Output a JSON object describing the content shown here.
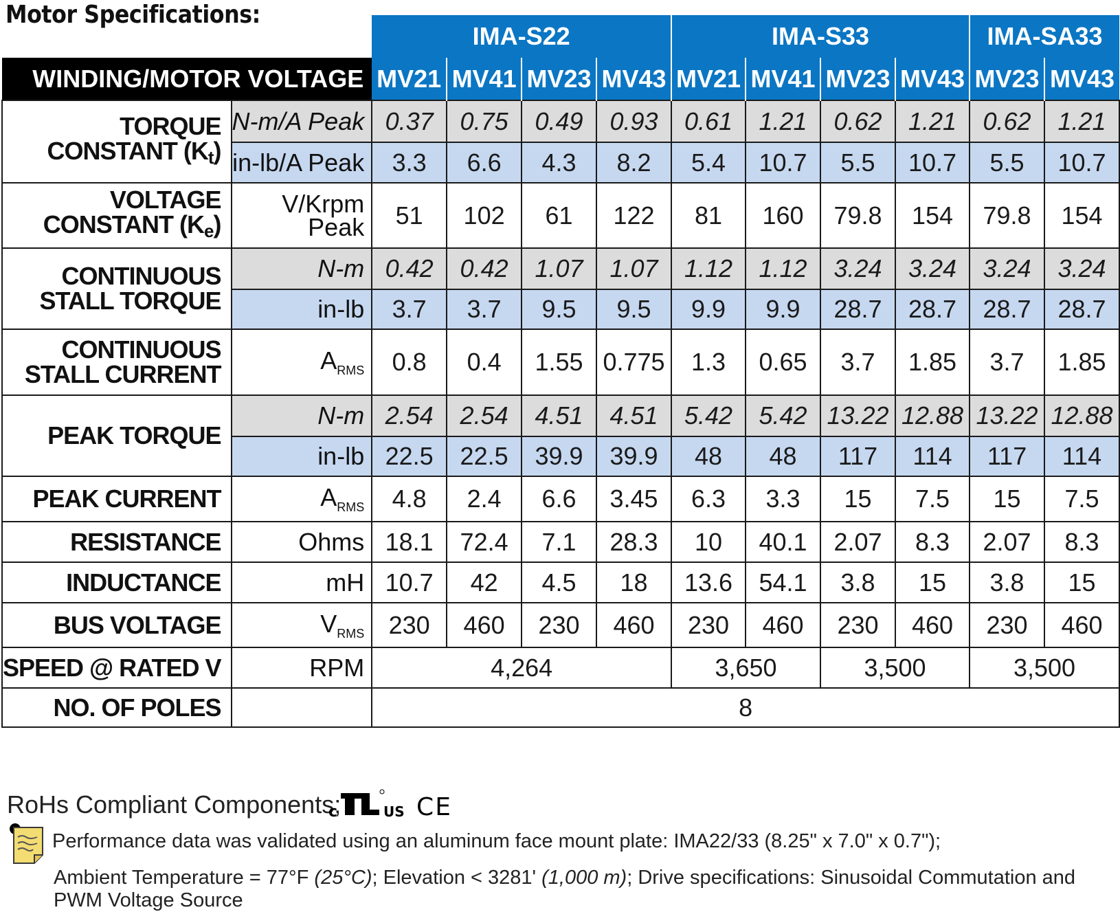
{
  "title": "Motor Specifications:",
  "groups": [
    {
      "label": "IMA-S22",
      "span": 4
    },
    {
      "label": "IMA-S33",
      "span": 4
    },
    {
      "label": "IMA-SA33",
      "span": 2
    }
  ],
  "winding_header": "WINDING/MOTOR VOLTAGE",
  "columns": [
    "MV21",
    "MV41",
    "MV23",
    "MV43",
    "MV21",
    "MV41",
    "MV23",
    "MV43",
    "MV23",
    "MV43"
  ],
  "rows": {
    "torque_constant": {
      "label_line1": "TORQUE",
      "label_line2": "CONSTANT (K",
      "label_sub": "t",
      "label_end": ")",
      "unit1": "N-m/A Peak",
      "values1": [
        "0.37",
        "0.75",
        "0.49",
        "0.93",
        "0.61",
        "1.21",
        "0.62",
        "1.21",
        "0.62",
        "1.21"
      ],
      "unit2": "in-lb/A Peak",
      "values2": [
        "3.3",
        "6.6",
        "4.3",
        "8.2",
        "5.4",
        "10.7",
        "5.5",
        "10.7",
        "5.5",
        "10.7"
      ]
    },
    "voltage_constant": {
      "label_line1": "VOLTAGE",
      "label_line2": "CONSTANT (K",
      "label_sub": "e",
      "label_end": ")",
      "unit_line1": "V/Krpm",
      "unit_line2": "Peak",
      "values": [
        "51",
        "102",
        "61",
        "122",
        "81",
        "160",
        "79.8",
        "154",
        "79.8",
        "154"
      ]
    },
    "continuous_stall_torque": {
      "label_line1": "CONTINUOUS",
      "label_line2": "STALL TORQUE",
      "unit1": "N-m",
      "values1": [
        "0.42",
        "0.42",
        "1.07",
        "1.07",
        "1.12",
        "1.12",
        "3.24",
        "3.24",
        "3.24",
        "3.24"
      ],
      "unit2": "in-lb",
      "values2": [
        "3.7",
        "3.7",
        "9.5",
        "9.5",
        "9.9",
        "9.9",
        "28.7",
        "28.7",
        "28.7",
        "28.7"
      ]
    },
    "continuous_stall_current": {
      "label_line1": "CONTINUOUS",
      "label_line2": "STALL CURRENT",
      "unit": "A",
      "unit_sub": "RMS",
      "values": [
        "0.8",
        "0.4",
        "1.55",
        "0.775",
        "1.3",
        "0.65",
        "3.7",
        "1.85",
        "3.7",
        "1.85"
      ]
    },
    "peak_torque": {
      "label": "PEAK TORQUE",
      "unit1": "N-m",
      "values1": [
        "2.54",
        "2.54",
        "4.51",
        "4.51",
        "5.42",
        "5.42",
        "13.22",
        "12.88",
        "13.22",
        "12.88"
      ],
      "unit2": "in-lb",
      "values2": [
        "22.5",
        "22.5",
        "39.9",
        "39.9",
        "48",
        "48",
        "117",
        "114",
        "117",
        "114"
      ]
    },
    "peak_current": {
      "label": "PEAK CURRENT",
      "unit": "A",
      "unit_sub": "RMS",
      "values": [
        "4.8",
        "2.4",
        "6.6",
        "3.45",
        "6.3",
        "3.3",
        "15",
        "7.5",
        "15",
        "7.5"
      ]
    },
    "resistance": {
      "label": "RESISTANCE",
      "unit": "Ohms",
      "values": [
        "18.1",
        "72.4",
        "7.1",
        "28.3",
        "10",
        "40.1",
        "2.07",
        "8.3",
        "2.07",
        "8.3"
      ]
    },
    "inductance": {
      "label": "INDUCTANCE",
      "unit": "mH",
      "values": [
        "10.7",
        "42",
        "4.5",
        "18",
        "13.6",
        "54.1",
        "3.8",
        "15",
        "3.8",
        "15"
      ]
    },
    "bus_voltage": {
      "label": "BUS VOLTAGE",
      "unit": "V",
      "unit_sub": "RMS",
      "values": [
        "230",
        "460",
        "230",
        "460",
        "230",
        "460",
        "230",
        "460",
        "230",
        "460"
      ]
    },
    "speed": {
      "label": "SPEED @ RATED V",
      "unit": "RPM",
      "values": [
        {
          "text": "4,264",
          "span": 4
        },
        {
          "text": "3,650",
          "span": 2
        },
        {
          "text": "3,500",
          "span": 2
        },
        {
          "text": "3,500",
          "span": 2
        }
      ]
    },
    "poles": {
      "label": "NO. OF POLES",
      "unit": "",
      "value": "8"
    }
  },
  "footer": {
    "rohs": "RoHs Compliant Components;",
    "cert_logos": {
      "ul_left": "c",
      "ul_right": "US",
      "ce": "CE"
    },
    "note_icon": "note-paper-icon",
    "note1": "Performance data was validated using an aluminum face mount plate: IMA22/33 (8.25\" x 7.0\" x 0.7\");",
    "note2_a": "Ambient Temperature = 77°F ",
    "note2_b": "(25°C)",
    "note2_c": "; Elevation < 3281' ",
    "note2_d": "(1,000 m)",
    "note2_e": "; Drive specifications: Sinusoidal Commutation and PWM Voltage Source"
  },
  "colors": {
    "header_blue": "#0b76c4",
    "row_gray": "#dcdcdc",
    "row_blue": "#c6d8f0",
    "header_black": "#000000"
  }
}
